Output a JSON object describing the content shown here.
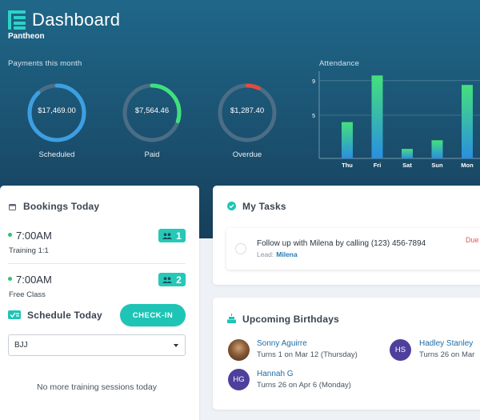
{
  "app": {
    "title": "Dashboard",
    "organization": "Pantheon"
  },
  "payments": {
    "label": "Payments this month",
    "items": [
      {
        "amount": "$17,469.00",
        "caption": "Scheduled",
        "fraction": 0.88,
        "color": "#3d9fe3"
      },
      {
        "amount": "$7,564.46",
        "caption": "Paid",
        "fraction": 0.3,
        "color": "#3ee27b"
      },
      {
        "amount": "$1,287.40",
        "caption": "Overdue",
        "fraction": 0.07,
        "color": "#e04c3f"
      }
    ]
  },
  "attendance": {
    "label": "Attendance"
  },
  "chart_data": {
    "type": "bar",
    "title": "Attendance",
    "categories": [
      "Thu",
      "Fri",
      "Sat",
      "Sun",
      "Mon"
    ],
    "values": [
      4.2,
      9.6,
      1.1,
      2.1,
      8.5
    ],
    "ylim": [
      0,
      10
    ],
    "yticks": [
      "5",
      "9"
    ],
    "grid": true
  },
  "bookings": {
    "title": "Bookings Today",
    "items": [
      {
        "time": "7:00AM",
        "name": "Training 1:1",
        "count": "1"
      },
      {
        "time": "7:00AM",
        "name": "Free Class",
        "count": "2"
      }
    ]
  },
  "schedule": {
    "title": "Schedule Today",
    "checkin_label": "CHECK-IN",
    "selected": "BJJ",
    "empty_message": "No more training sessions today"
  },
  "tasks": {
    "title": "My Tasks",
    "items": [
      {
        "text": "Follow up with Milena by calling (123) 456-7894",
        "lead_label": "Lead:",
        "lead_name": "Milena",
        "status": "Due"
      }
    ]
  },
  "birthdays": {
    "title": "Upcoming Birthdays",
    "people": [
      {
        "name": "Sonny Aguirre",
        "detail": "Turns 1 on Mar 12 (Thursday)",
        "initials": "",
        "color": "#6b4a30"
      },
      {
        "name": "Hadley Stanley",
        "detail": "Turns 26 on Mar",
        "initials": "HS",
        "color": "#4f3f9c"
      },
      {
        "name": "Hannah G",
        "detail": "Turns 26 on Apr 6 (Monday)",
        "initials": "HG",
        "color": "#4f3f9c"
      }
    ]
  },
  "colors": {
    "accent": "#1ec4b5",
    "hero": "#1b5170",
    "link": "#1f6da3"
  }
}
